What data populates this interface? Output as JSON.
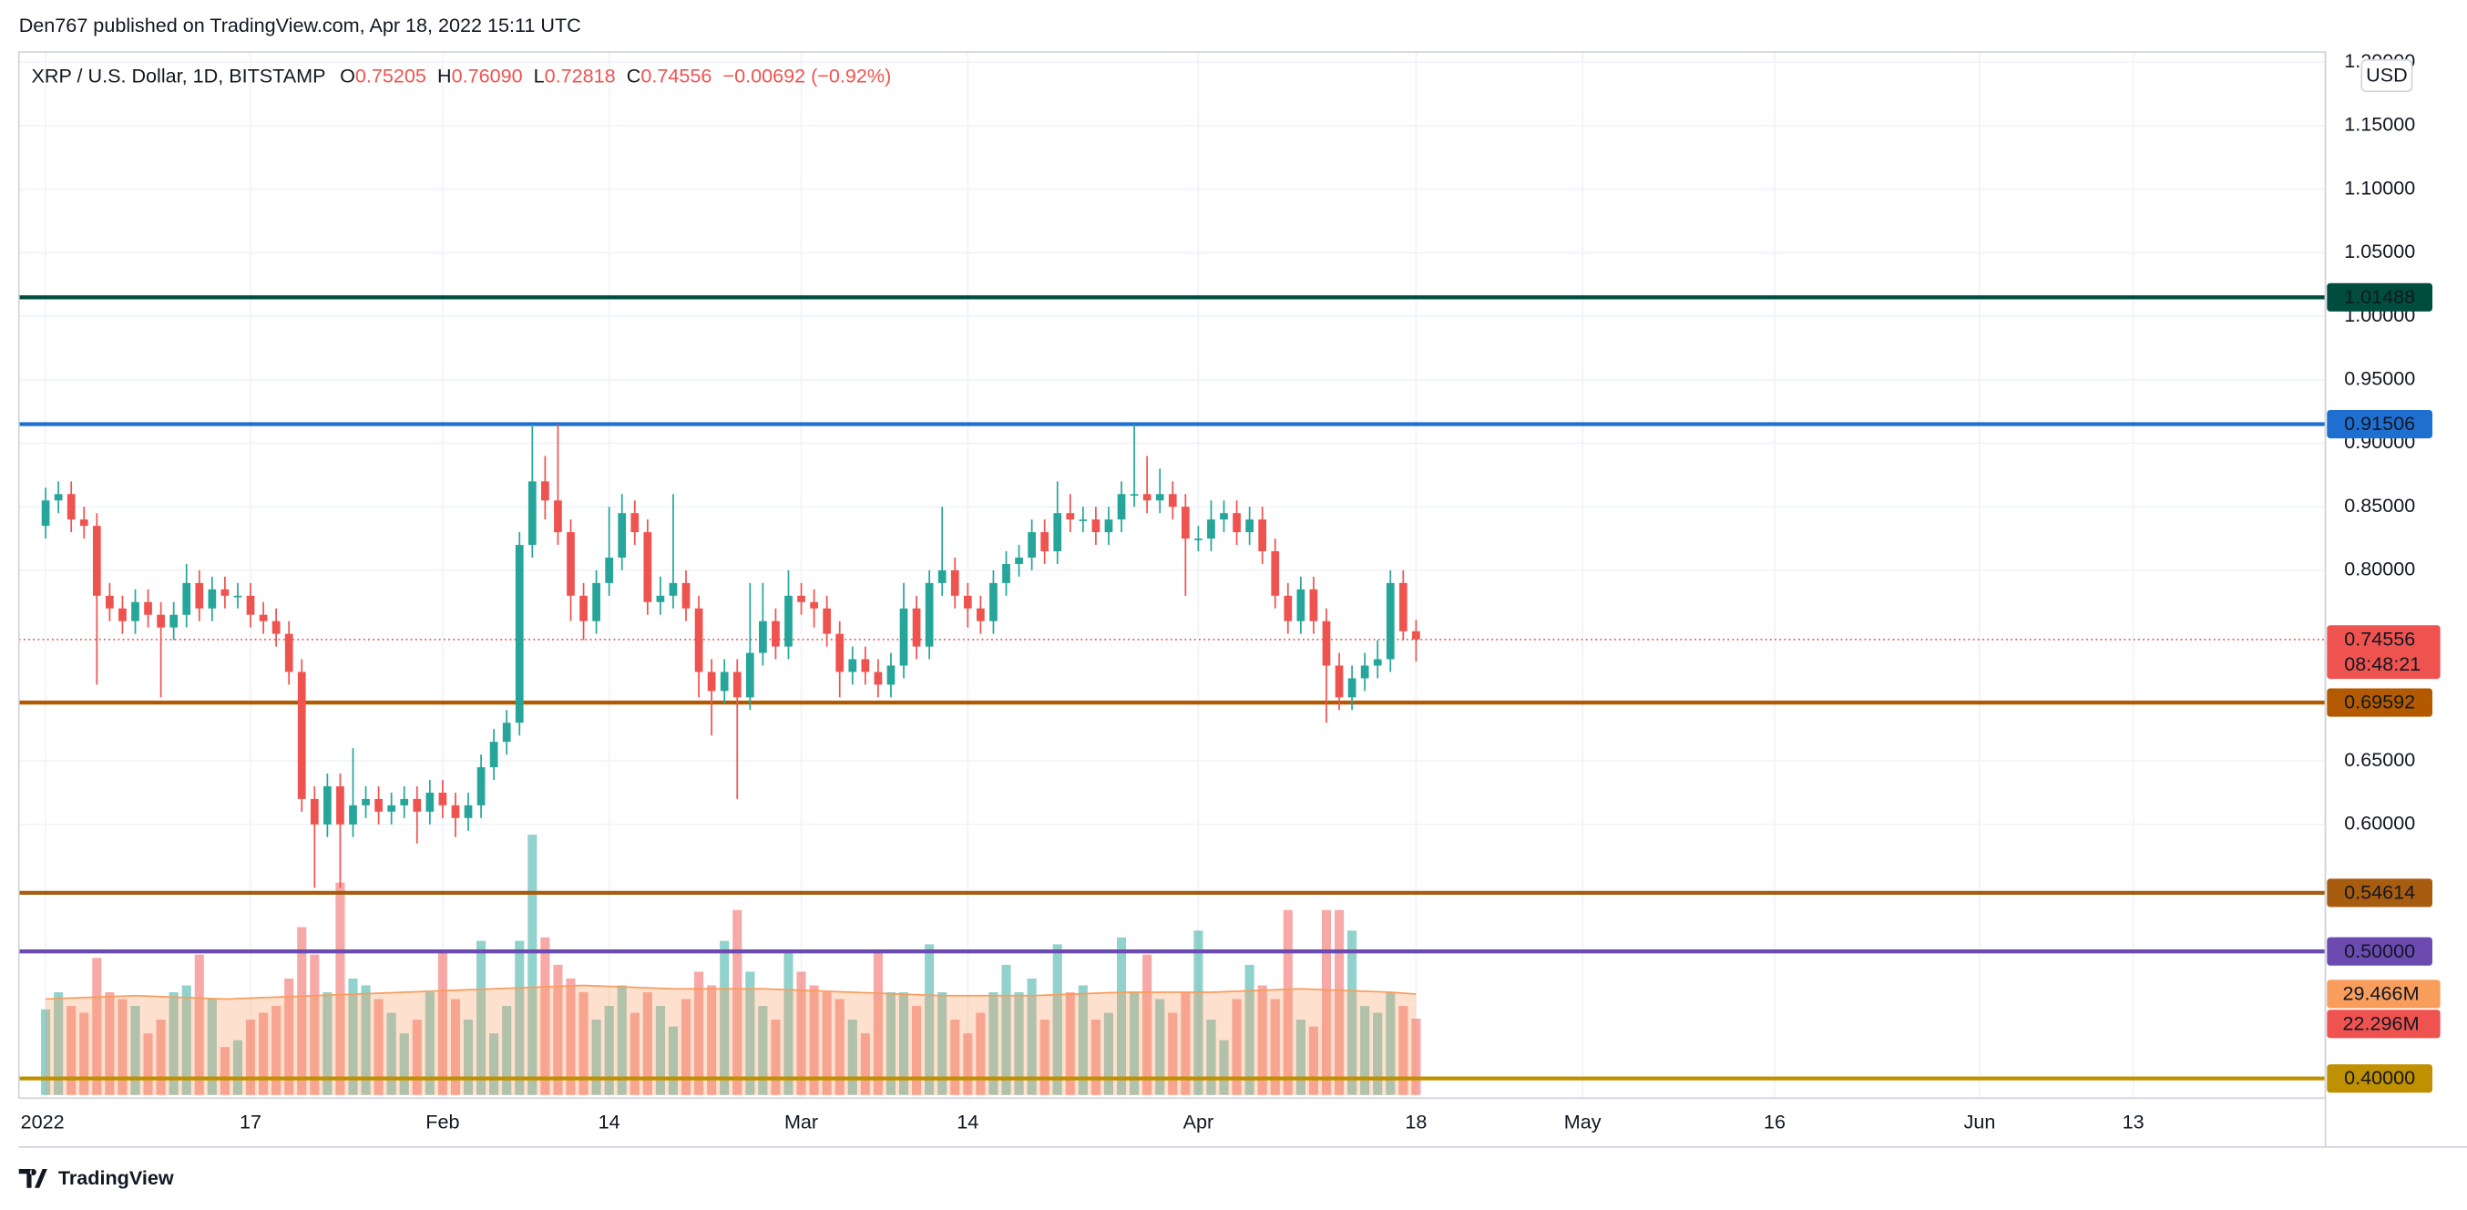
{
  "header": "Den767 published on TradingView.com, Apr 18, 2022 15:11 UTC",
  "footer": "TradingView",
  "chart_data": {
    "type": "candlestick",
    "legend": {
      "symbol": "XRP / U.S. Dollar, 1D, BITSTAMP",
      "ohlc_labels": [
        "O",
        "H",
        "L",
        "C"
      ],
      "ohlc_values": [
        "0.75205",
        "0.76090",
        "0.72818",
        "0.74556"
      ],
      "change": "−0.00692 (−0.92%)"
    },
    "currency": "USD",
    "up_color": "#26a69a",
    "down_color": "#ef5350",
    "x": [
      "2022-01-01",
      "2022-01-02",
      "2022-01-03",
      "2022-01-04",
      "2022-01-05",
      "2022-01-06",
      "2022-01-07",
      "2022-01-08",
      "2022-01-09",
      "2022-01-10",
      "2022-01-11",
      "2022-01-12",
      "2022-01-13",
      "2022-01-14",
      "2022-01-15",
      "2022-01-16",
      "2022-01-17",
      "2022-01-18",
      "2022-01-19",
      "2022-01-20",
      "2022-01-21",
      "2022-01-22",
      "2022-01-23",
      "2022-01-24",
      "2022-01-25",
      "2022-01-26",
      "2022-01-27",
      "2022-01-28",
      "2022-01-29",
      "2022-01-30",
      "2022-01-31",
      "2022-02-01",
      "2022-02-02",
      "2022-02-03",
      "2022-02-04",
      "2022-02-05",
      "2022-02-06",
      "2022-02-07",
      "2022-02-08",
      "2022-02-09",
      "2022-02-10",
      "2022-02-11",
      "2022-02-12",
      "2022-02-13",
      "2022-02-14",
      "2022-02-15",
      "2022-02-16",
      "2022-02-17",
      "2022-02-18",
      "2022-02-19",
      "2022-02-20",
      "2022-02-21",
      "2022-02-22",
      "2022-02-23",
      "2022-02-24",
      "2022-02-25",
      "2022-02-26",
      "2022-02-27",
      "2022-02-28",
      "2022-03-01",
      "2022-03-02",
      "2022-03-03",
      "2022-03-04",
      "2022-03-05",
      "2022-03-06",
      "2022-03-07",
      "2022-03-08",
      "2022-03-09",
      "2022-03-10",
      "2022-03-11",
      "2022-03-12",
      "2022-03-13",
      "2022-03-14",
      "2022-03-15",
      "2022-03-16",
      "2022-03-17",
      "2022-03-18",
      "2022-03-19",
      "2022-03-20",
      "2022-03-21",
      "2022-03-22",
      "2022-03-23",
      "2022-03-24",
      "2022-03-25",
      "2022-03-26",
      "2022-03-27",
      "2022-03-28",
      "2022-03-29",
      "2022-03-30",
      "2022-03-31",
      "2022-04-01",
      "2022-04-02",
      "2022-04-03",
      "2022-04-04",
      "2022-04-05",
      "2022-04-06",
      "2022-04-07",
      "2022-04-08",
      "2022-04-09",
      "2022-04-10",
      "2022-04-11",
      "2022-04-12",
      "2022-04-13",
      "2022-04-14",
      "2022-04-15",
      "2022-04-16",
      "2022-04-17",
      "2022-04-18"
    ],
    "open": [
      0.835,
      0.855,
      0.86,
      0.84,
      0.835,
      0.78,
      0.77,
      0.76,
      0.775,
      0.765,
      0.755,
      0.765,
      0.79,
      0.77,
      0.785,
      0.78,
      0.78,
      0.765,
      0.76,
      0.75,
      0.72,
      0.62,
      0.6,
      0.63,
      0.6,
      0.615,
      0.62,
      0.61,
      0.615,
      0.62,
      0.61,
      0.625,
      0.615,
      0.605,
      0.615,
      0.645,
      0.665,
      0.68,
      0.82,
      0.87,
      0.855,
      0.83,
      0.78,
      0.76,
      0.79,
      0.81,
      0.845,
      0.83,
      0.775,
      0.78,
      0.79,
      0.77,
      0.72,
      0.705,
      0.72,
      0.7,
      0.735,
      0.76,
      0.74,
      0.78,
      0.775,
      0.77,
      0.75,
      0.72,
      0.73,
      0.72,
      0.71,
      0.725,
      0.77,
      0.74,
      0.79,
      0.8,
      0.78,
      0.77,
      0.76,
      0.79,
      0.805,
      0.81,
      0.83,
      0.815,
      0.845,
      0.84,
      0.84,
      0.83,
      0.84,
      0.86,
      0.86,
      0.855,
      0.86,
      0.85,
      0.825,
      0.825,
      0.84,
      0.845,
      0.83,
      0.84,
      0.815,
      0.78,
      0.76,
      0.785,
      0.76,
      0.725,
      0.7,
      0.715,
      0.725,
      0.73,
      0.79,
      0.75205
    ],
    "high": [
      0.865,
      0.87,
      0.87,
      0.85,
      0.845,
      0.79,
      0.78,
      0.785,
      0.785,
      0.775,
      0.775,
      0.805,
      0.8,
      0.795,
      0.795,
      0.79,
      0.79,
      0.775,
      0.77,
      0.76,
      0.73,
      0.63,
      0.64,
      0.64,
      0.66,
      0.63,
      0.63,
      0.625,
      0.63,
      0.63,
      0.635,
      0.635,
      0.625,
      0.625,
      0.655,
      0.675,
      0.69,
      0.83,
      0.915,
      0.89,
      0.915,
      0.84,
      0.79,
      0.8,
      0.85,
      0.86,
      0.855,
      0.84,
      0.795,
      0.86,
      0.8,
      0.78,
      0.73,
      0.73,
      0.73,
      0.79,
      0.79,
      0.77,
      0.8,
      0.79,
      0.785,
      0.78,
      0.76,
      0.74,
      0.74,
      0.73,
      0.735,
      0.79,
      0.78,
      0.8,
      0.85,
      0.81,
      0.79,
      0.78,
      0.8,
      0.815,
      0.82,
      0.84,
      0.84,
      0.87,
      0.86,
      0.85,
      0.85,
      0.85,
      0.87,
      0.915,
      0.89,
      0.88,
      0.87,
      0.86,
      0.835,
      0.855,
      0.855,
      0.855,
      0.85,
      0.85,
      0.825,
      0.79,
      0.795,
      0.795,
      0.77,
      0.735,
      0.725,
      0.735,
      0.745,
      0.8,
      0.8,
      0.7609
    ],
    "low": [
      0.825,
      0.845,
      0.83,
      0.825,
      0.71,
      0.76,
      0.75,
      0.75,
      0.755,
      0.7,
      0.745,
      0.755,
      0.76,
      0.76,
      0.77,
      0.77,
      0.755,
      0.75,
      0.74,
      0.71,
      0.61,
      0.55,
      0.59,
      0.55,
      0.59,
      0.605,
      0.6,
      0.6,
      0.605,
      0.585,
      0.6,
      0.605,
      0.59,
      0.595,
      0.605,
      0.635,
      0.655,
      0.67,
      0.81,
      0.84,
      0.82,
      0.76,
      0.745,
      0.75,
      0.78,
      0.8,
      0.82,
      0.765,
      0.765,
      0.77,
      0.76,
      0.7,
      0.67,
      0.695,
      0.62,
      0.69,
      0.725,
      0.73,
      0.73,
      0.765,
      0.755,
      0.74,
      0.7,
      0.71,
      0.71,
      0.7,
      0.7,
      0.715,
      0.73,
      0.73,
      0.78,
      0.77,
      0.755,
      0.75,
      0.75,
      0.78,
      0.795,
      0.8,
      0.805,
      0.805,
      0.83,
      0.83,
      0.82,
      0.82,
      0.83,
      0.85,
      0.845,
      0.845,
      0.84,
      0.78,
      0.815,
      0.815,
      0.83,
      0.82,
      0.82,
      0.805,
      0.77,
      0.75,
      0.75,
      0.75,
      0.68,
      0.69,
      0.69,
      0.705,
      0.715,
      0.72,
      0.745,
      0.72818
    ],
    "close": [
      0.855,
      0.86,
      0.84,
      0.835,
      0.78,
      0.77,
      0.76,
      0.775,
      0.765,
      0.755,
      0.765,
      0.79,
      0.77,
      0.785,
      0.78,
      0.78,
      0.765,
      0.76,
      0.75,
      0.72,
      0.62,
      0.6,
      0.63,
      0.6,
      0.615,
      0.62,
      0.61,
      0.615,
      0.62,
      0.61,
      0.625,
      0.615,
      0.605,
      0.615,
      0.645,
      0.665,
      0.68,
      0.82,
      0.87,
      0.855,
      0.83,
      0.78,
      0.76,
      0.79,
      0.81,
      0.845,
      0.83,
      0.775,
      0.78,
      0.79,
      0.77,
      0.72,
      0.705,
      0.72,
      0.7,
      0.735,
      0.76,
      0.74,
      0.78,
      0.775,
      0.77,
      0.75,
      0.72,
      0.73,
      0.72,
      0.71,
      0.725,
      0.77,
      0.74,
      0.79,
      0.8,
      0.78,
      0.77,
      0.76,
      0.79,
      0.805,
      0.81,
      0.83,
      0.815,
      0.845,
      0.84,
      0.84,
      0.83,
      0.84,
      0.86,
      0.86,
      0.855,
      0.86,
      0.85,
      0.825,
      0.825,
      0.84,
      0.845,
      0.83,
      0.84,
      0.815,
      0.78,
      0.76,
      0.785,
      0.76,
      0.725,
      0.7,
      0.715,
      0.725,
      0.73,
      0.79,
      0.752,
      0.74556
    ],
    "volume": [
      25,
      30,
      26,
      24,
      40,
      30,
      28,
      26,
      18,
      22,
      30,
      32,
      41,
      28,
      14,
      16,
      22,
      24,
      26,
      34,
      49,
      41,
      30,
      62,
      34,
      32,
      28,
      24,
      18,
      22,
      30,
      42,
      28,
      22,
      45,
      18,
      26,
      45,
      76,
      46,
      38,
      34,
      30,
      22,
      26,
      32,
      24,
      30,
      26,
      20,
      28,
      36,
      32,
      45,
      54,
      36,
      26,
      22,
      42,
      36,
      32,
      30,
      28,
      22,
      18,
      42,
      30,
      30,
      26,
      44,
      30,
      22,
      18,
      24,
      30,
      38,
      30,
      34,
      22,
      44,
      30,
      32,
      22,
      24,
      46,
      30,
      41,
      28,
      24,
      30,
      48,
      22,
      16,
      28,
      38,
      32,
      28,
      54,
      22,
      20,
      54,
      54,
      48,
      26,
      24,
      30,
      26,
      22.296
    ],
    "volume_ma": {
      "color": "#f89d5c",
      "x": [
        "2022-01-01",
        "2022-01-08",
        "2022-01-15",
        "2022-01-22",
        "2022-01-29",
        "2022-02-05",
        "2022-02-12",
        "2022-02-19",
        "2022-02-26",
        "2022-03-05",
        "2022-03-12",
        "2022-03-19",
        "2022-03-26",
        "2022-04-02",
        "2022-04-09",
        "2022-04-16",
        "2022-04-18"
      ],
      "values": [
        28,
        29,
        28,
        29,
        30,
        31,
        32,
        31,
        31,
        30,
        29,
        29,
        30,
        30,
        31,
        30,
        29.466
      ]
    },
    "volume_ma_last": {
      "value": 29.466,
      "label": "29.466M"
    },
    "volume_last": {
      "value": 22.296,
      "label": "22.296M"
    },
    "volume_lim": [
      0,
      304.5
    ],
    "last": {
      "value": 0.74556,
      "countdown": "08:48:21",
      "color": "#ef5350"
    },
    "levels": [
      {
        "value": 1.01488,
        "color": "#004d40"
      },
      {
        "value": 0.91506,
        "color": "#1e6fd0"
      },
      {
        "value": 0.69592,
        "color": "#b35a00"
      },
      {
        "value": 0.54614,
        "color": "#a85c10"
      },
      {
        "value": 0.5,
        "label": "0.50000",
        "color": "#6b4bb0"
      },
      {
        "value": 0.4,
        "label": "0.40000",
        "color": "#bf9000"
      }
    ],
    "xlim": [
      "2022-01-01",
      "2022-06-28"
    ],
    "ylim": [
      0.387,
      1.208
    ],
    "xticks": [
      {
        "value": "2022-01-01",
        "label": "2022"
      },
      {
        "value": "2022-01-17",
        "label": "17"
      },
      {
        "value": "2022-02-01",
        "label": "Feb"
      },
      {
        "value": "2022-02-14",
        "label": "14"
      },
      {
        "value": "2022-03-01",
        "label": "Mar"
      },
      {
        "value": "2022-03-14",
        "label": "14"
      },
      {
        "value": "2022-04-01",
        "label": "Apr"
      },
      {
        "value": "2022-04-18",
        "label": "18"
      },
      {
        "value": "2022-05-01",
        "label": "May"
      },
      {
        "value": "2022-05-16",
        "label": "16"
      },
      {
        "value": "2022-06-01",
        "label": "Jun"
      },
      {
        "value": "2022-06-13",
        "label": "13"
      }
    ],
    "yticks": [
      {
        "value": 1.2,
        "label": "1.20000"
      },
      {
        "value": 1.15,
        "label": "1.15000"
      },
      {
        "value": 1.1,
        "label": "1.10000"
      },
      {
        "value": 1.05,
        "label": "1.05000"
      },
      {
        "value": 1.0,
        "label": "1.00000"
      },
      {
        "value": 0.95,
        "label": "0.95000"
      },
      {
        "value": 0.9,
        "label": "0.90000"
      },
      {
        "value": 0.85,
        "label": "0.85000"
      },
      {
        "value": 0.8,
        "label": "0.80000"
      },
      {
        "value": 0.65,
        "label": "0.65000"
      },
      {
        "value": 0.6,
        "label": "0.60000"
      }
    ],
    "grid": true
  }
}
